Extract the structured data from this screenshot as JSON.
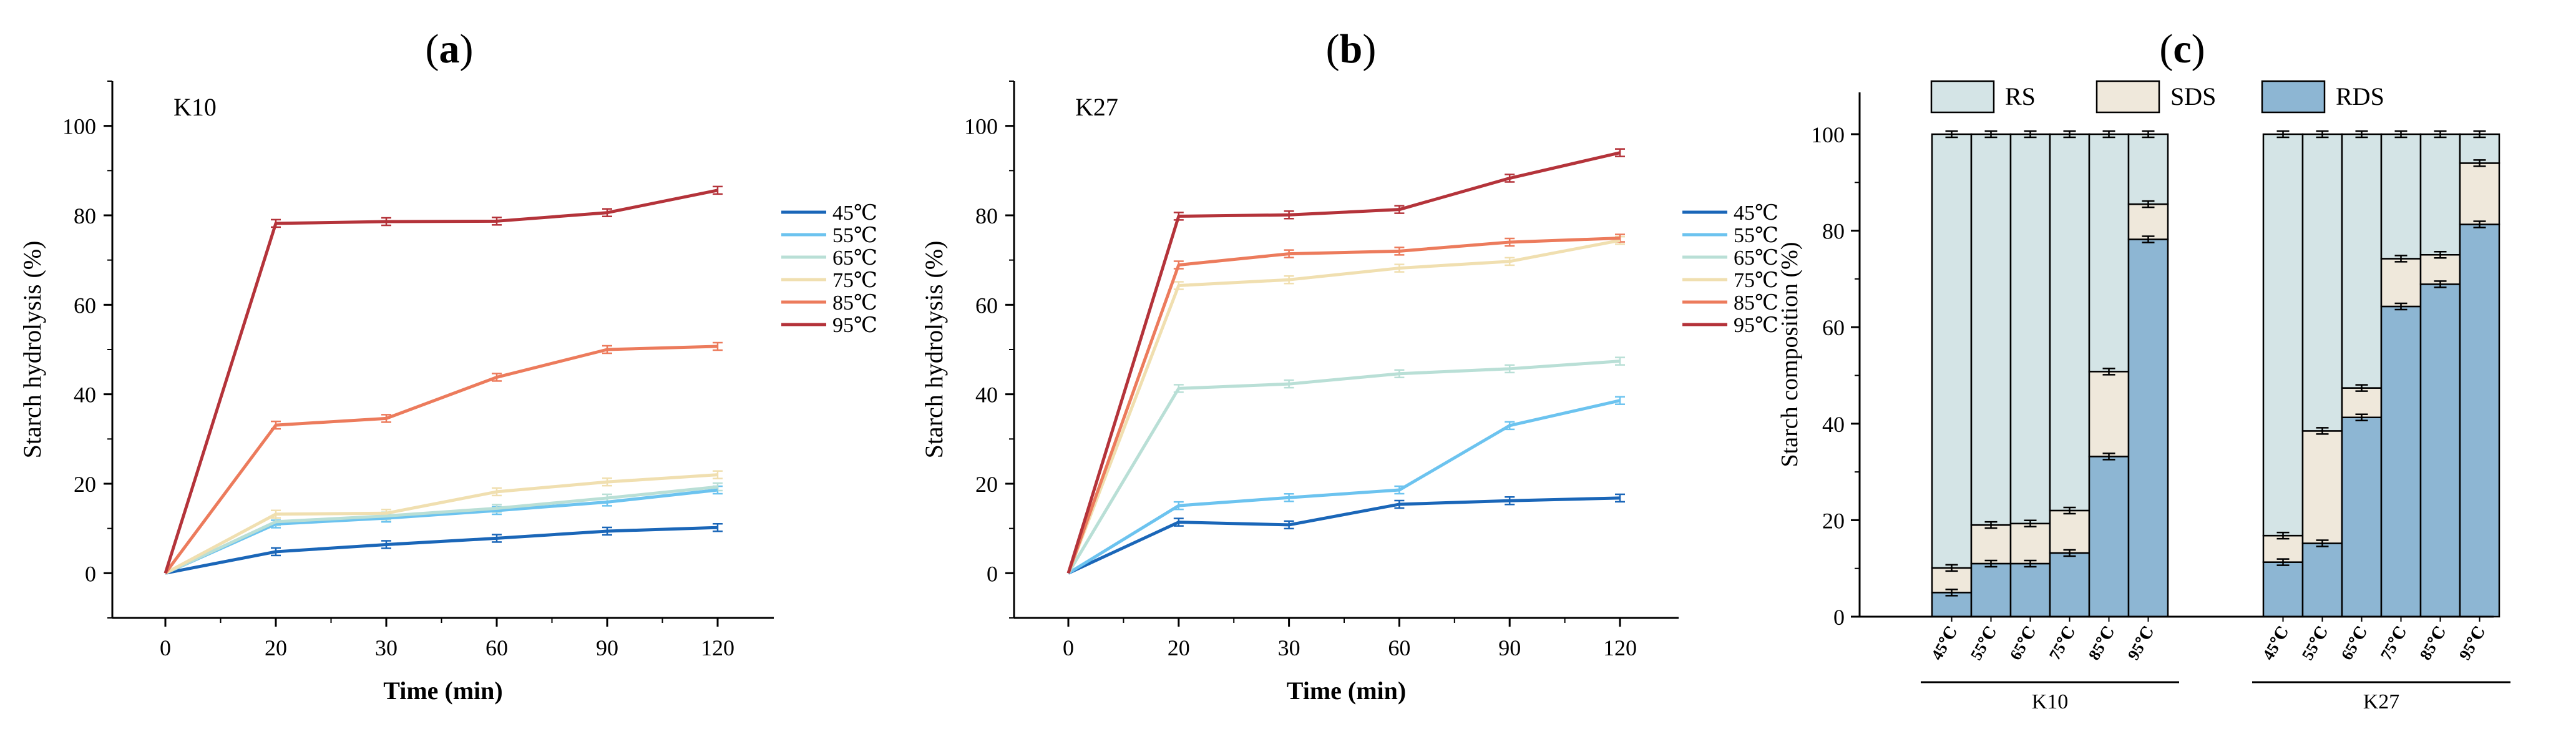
{
  "panels": {
    "a": {
      "label_open": "(",
      "label_letter": "a",
      "label_close": ")"
    },
    "b": {
      "label_open": "(",
      "label_letter": "b",
      "label_close": ")"
    },
    "c": {
      "label_open": "(",
      "label_letter": "c",
      "label_close": ")"
    }
  },
  "chart_data": [
    {
      "id": "a",
      "type": "line",
      "title": "(a)",
      "annotation": "K10",
      "xlabel": "Time (min)",
      "ylabel": "Starch hydrolysis (%)",
      "x": [
        0,
        20,
        30,
        60,
        90,
        120
      ],
      "ylim": [
        -10,
        110
      ],
      "yticks": [
        0,
        20,
        40,
        60,
        80,
        100
      ],
      "series": [
        {
          "name": "45℃",
          "color": "#1a66b8",
          "values": [
            0,
            4.8,
            6.4,
            7.8,
            9.4,
            10.2
          ]
        },
        {
          "name": "55℃",
          "color": "#6cc3ef",
          "values": [
            0,
            11.0,
            12.3,
            14.0,
            15.9,
            18.6
          ]
        },
        {
          "name": "65℃",
          "color": "#b9dfd6",
          "values": [
            0,
            11.5,
            12.8,
            14.5,
            16.8,
            19.3
          ]
        },
        {
          "name": "75℃",
          "color": "#f0dfb0",
          "values": [
            0,
            13.2,
            13.4,
            18.2,
            20.4,
            22.0
          ]
        },
        {
          "name": "85℃",
          "color": "#ec7b5c",
          "values": [
            0,
            33.1,
            34.6,
            43.8,
            50.0,
            50.7
          ]
        },
        {
          "name": "95℃",
          "color": "#b4333a",
          "values": [
            0,
            78.2,
            78.6,
            78.7,
            80.6,
            85.6
          ]
        }
      ]
    },
    {
      "id": "b",
      "type": "line",
      "title": "(b)",
      "annotation": "K27",
      "xlabel": "Time (min)",
      "ylabel": "Starch hydrolysis (%)",
      "x": [
        0,
        20,
        30,
        60,
        90,
        120
      ],
      "ylim": [
        -10,
        110
      ],
      "yticks": [
        0,
        20,
        40,
        60,
        80,
        100
      ],
      "series": [
        {
          "name": "45℃",
          "color": "#1a66b8",
          "values": [
            0,
            11.4,
            10.8,
            15.4,
            16.2,
            16.8
          ]
        },
        {
          "name": "55℃",
          "color": "#6cc3ef",
          "values": [
            0,
            15.1,
            16.9,
            18.6,
            33.0,
            38.6
          ]
        },
        {
          "name": "65℃",
          "color": "#b9dfd6",
          "values": [
            0,
            41.3,
            42.3,
            44.6,
            45.7,
            47.4
          ]
        },
        {
          "name": "75℃",
          "color": "#f0dfb0",
          "values": [
            0,
            64.3,
            65.6,
            68.2,
            69.7,
            74.4
          ]
        },
        {
          "name": "85℃",
          "color": "#ec7b5c",
          "values": [
            0,
            68.9,
            71.4,
            72.0,
            74.0,
            74.9
          ]
        },
        {
          "name": "95℃",
          "color": "#b4333a",
          "values": [
            0,
            79.8,
            80.1,
            81.3,
            88.3,
            94.0
          ]
        }
      ]
    },
    {
      "id": "c",
      "type": "bar",
      "stacked": true,
      "title": "(c)",
      "ylabel": "Starch composition (%)",
      "ylim": [
        0,
        108
      ],
      "yticks": [
        0,
        20,
        40,
        60,
        80,
        100
      ],
      "groups": [
        {
          "name": "K10",
          "categories": [
            "45℃",
            "55℃",
            "65℃",
            "75℃",
            "85℃",
            "95℃"
          ]
        },
        {
          "name": "K27",
          "categories": [
            "45℃",
            "55℃",
            "65℃",
            "75℃",
            "85℃",
            "95℃"
          ]
        }
      ],
      "series": [
        {
          "name": "RDS",
          "color": "#8db6d3",
          "values": [
            5.0,
            11.0,
            11.0,
            13.2,
            33.2,
            78.2,
            11.3,
            15.2,
            41.3,
            64.3,
            68.9,
            81.3
          ]
        },
        {
          "name": "SDS",
          "color": "#efe8db",
          "values": [
            5.1,
            8.0,
            8.3,
            8.8,
            17.6,
            7.3,
            5.5,
            23.3,
            6.1,
            9.9,
            6.1,
            12.7
          ]
        },
        {
          "name": "RS",
          "color": "#d4e4e6",
          "values": [
            89.9,
            81.0,
            80.7,
            78.0,
            49.2,
            14.5,
            83.2,
            61.5,
            52.6,
            25.8,
            25.0,
            6.0
          ]
        }
      ],
      "legend": [
        "RS",
        "SDS",
        "RDS"
      ]
    }
  ]
}
